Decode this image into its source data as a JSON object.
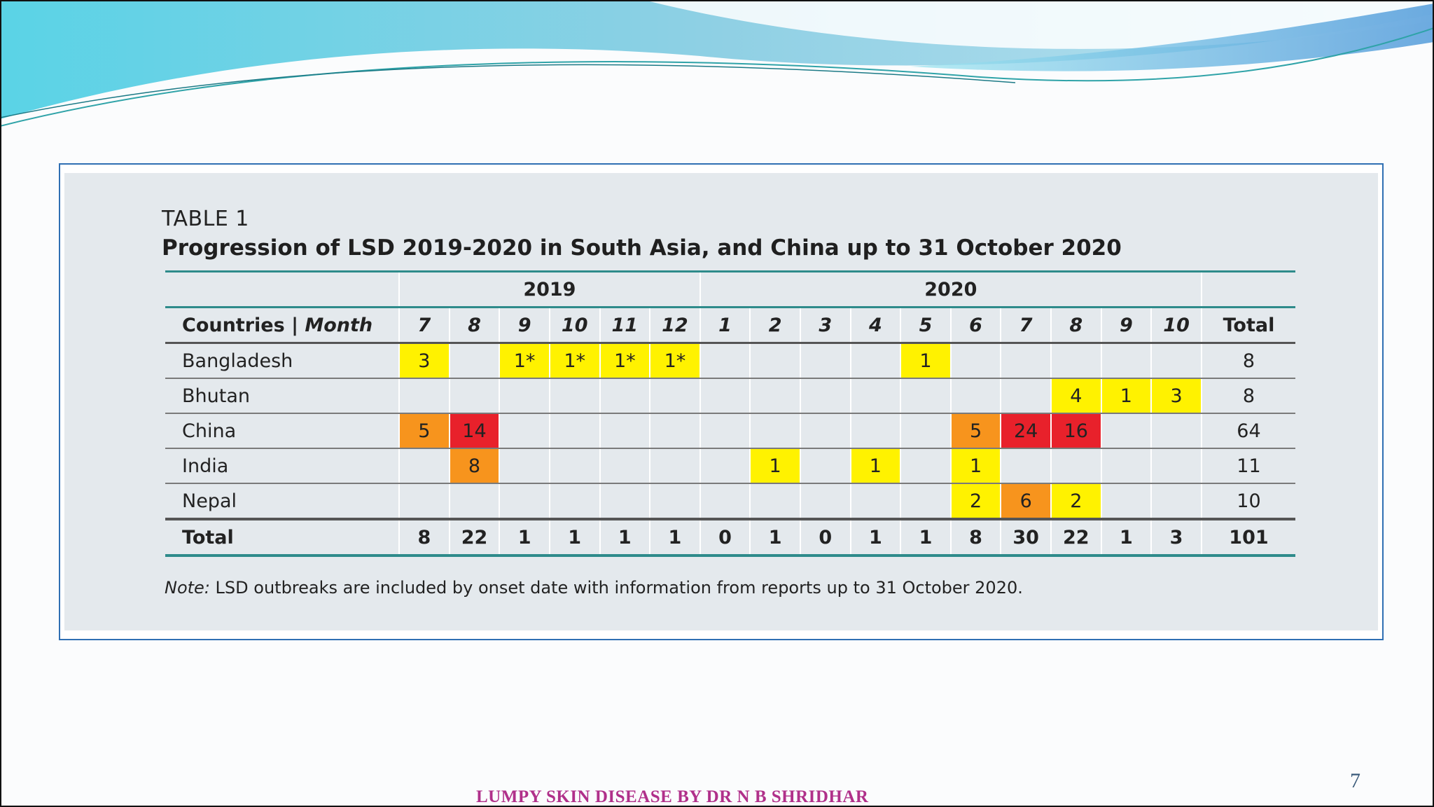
{
  "slide": {
    "table_label": "TABLE 1",
    "table_title": "Progression of LSD 2019-2020 in South Asia, and China up to 31 October 2020",
    "note_prefix": "Note:",
    "note_text": "LSD outbreaks are included by onset date with information from reports up to 31 October 2020.",
    "footer": "LUMPY SKIN DISEASE BY DR N B SHRIDHAR",
    "page_number": "7"
  },
  "table": {
    "years": [
      "2019",
      "2020"
    ],
    "header_label": "Countries",
    "header_separator": "|",
    "header_month": "Month",
    "months": [
      "7",
      "8",
      "9",
      "10",
      "11",
      "12",
      "1",
      "2",
      "3",
      "4",
      "5",
      "6",
      "7",
      "8",
      "9",
      "10"
    ],
    "total_header": "Total",
    "rows": [
      {
        "country": "Bangladesh",
        "cells": [
          "3",
          "",
          "1*",
          "1*",
          "1*",
          "1*",
          "",
          "",
          "",
          "",
          "1",
          "",
          "",
          "",
          "",
          ""
        ],
        "total": "8"
      },
      {
        "country": "Bhutan",
        "cells": [
          "",
          "",
          "",
          "",
          "",
          "",
          "",
          "",
          "",
          "",
          "",
          "",
          "",
          "4",
          "1",
          "3"
        ],
        "total": "8"
      },
      {
        "country": "China",
        "cells": [
          "5",
          "14",
          "",
          "",
          "",
          "",
          "",
          "",
          "",
          "",
          "",
          "5",
          "24",
          "16",
          "",
          ""
        ],
        "total": "64"
      },
      {
        "country": "India",
        "cells": [
          "",
          "8",
          "",
          "",
          "",
          "",
          "",
          "1",
          "",
          "1",
          "",
          "1",
          "",
          "",
          "",
          ""
        ],
        "total": "11"
      },
      {
        "country": "Nepal",
        "cells": [
          "",
          "",
          "",
          "",
          "",
          "",
          "",
          "",
          "",
          "",
          "",
          "2",
          "6",
          "2",
          "",
          ""
        ],
        "total": "10"
      }
    ],
    "total_row": {
      "label": "Total",
      "cells": [
        "8",
        "22",
        "1",
        "1",
        "1",
        "1",
        "0",
        "1",
        "0",
        "1",
        "1",
        "8",
        "30",
        "22",
        "1",
        "3"
      ],
      "total": "101"
    },
    "highlight_colors": {
      "yellow": "#fff200",
      "orange": "#f7941d",
      "red": "#e8212b"
    },
    "highlights": [
      [
        "yellow",
        "",
        "yellow",
        "yellow",
        "yellow",
        "yellow",
        "",
        "",
        "",
        "",
        "yellow",
        "",
        "",
        "",
        "",
        ""
      ],
      [
        "",
        "",
        "",
        "",
        "",
        "",
        "",
        "",
        "",
        "",
        "",
        "",
        "",
        "yellow",
        "yellow",
        "yellow"
      ],
      [
        "orange",
        "red",
        "",
        "",
        "",
        "",
        "",
        "",
        "",
        "",
        "",
        "orange",
        "red",
        "red",
        "",
        ""
      ],
      [
        "",
        "orange",
        "",
        "",
        "",
        "",
        "",
        "yellow",
        "",
        "yellow",
        "",
        "yellow",
        "",
        "",
        "",
        ""
      ],
      [
        "",
        "",
        "",
        "",
        "",
        "",
        "",
        "",
        "",
        "",
        "",
        "yellow",
        "orange",
        "yellow",
        "",
        ""
      ]
    ]
  },
  "colors": {
    "panel_border": "#2f6fb3",
    "panel_fill": "#e4e9ed",
    "rule_teal": "#2e8b8b",
    "footer_text": "#b0308a"
  }
}
